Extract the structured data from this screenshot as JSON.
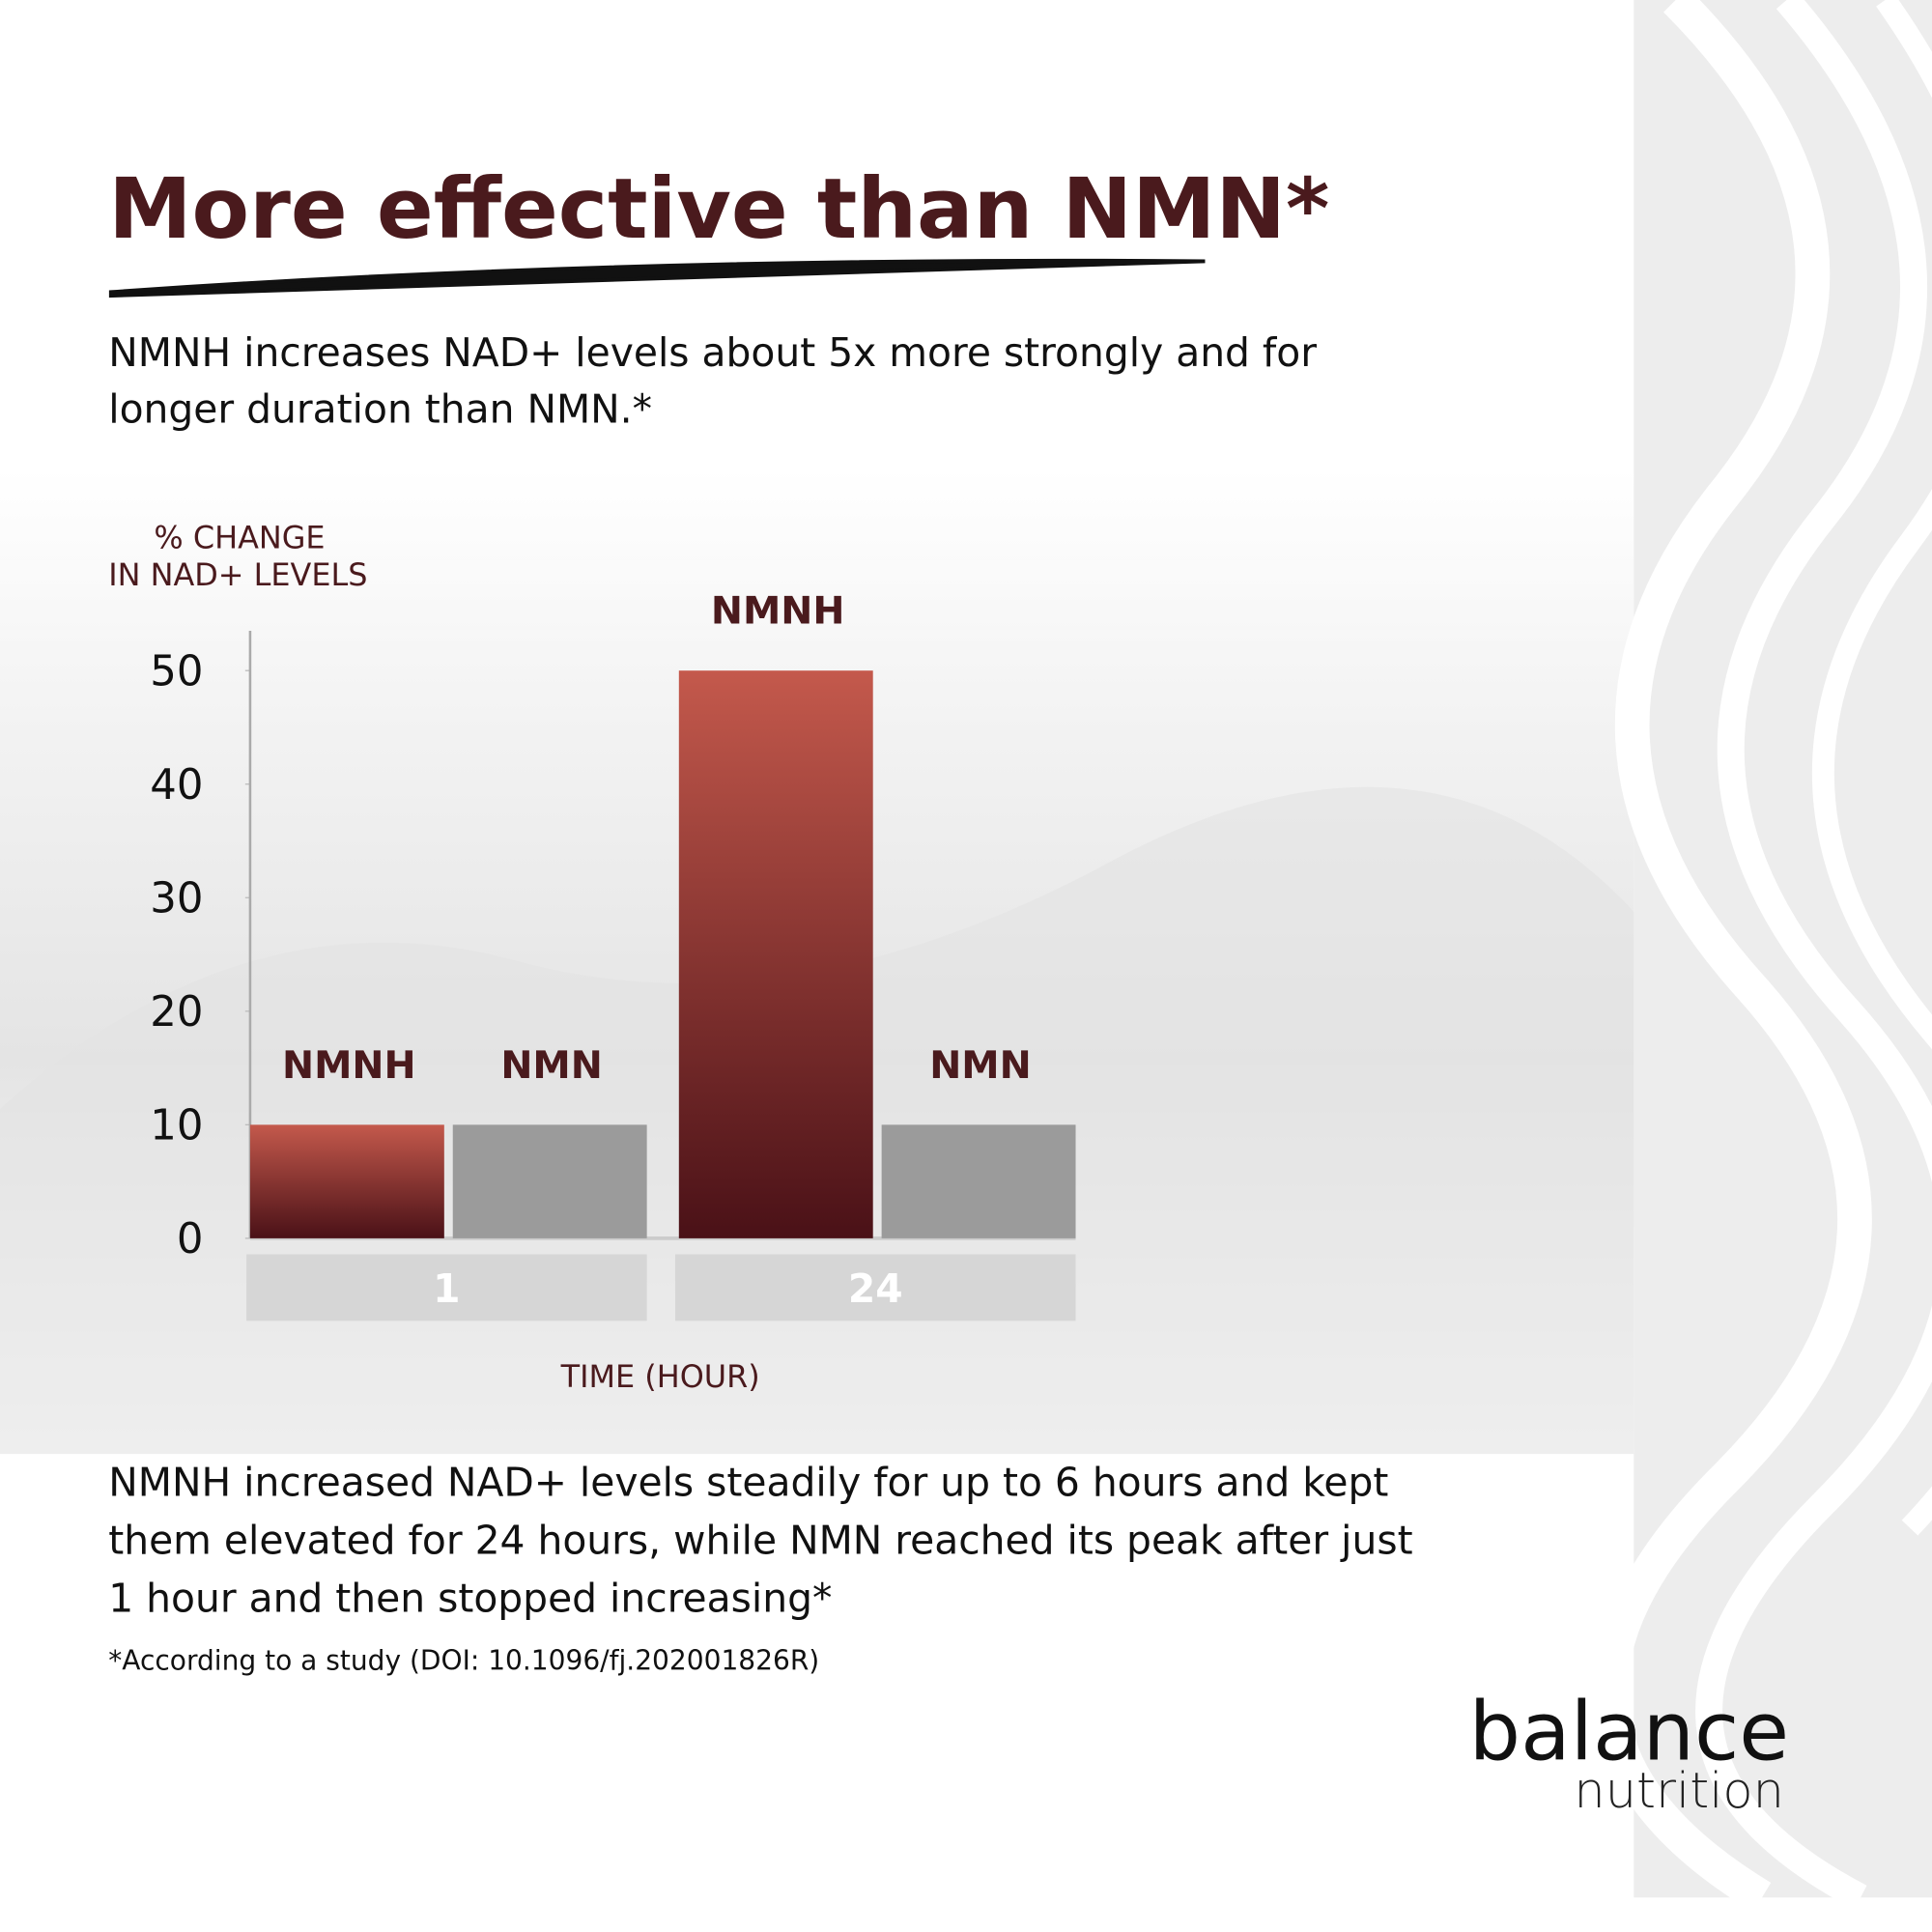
{
  "chart_data": {
    "type": "bar",
    "title": "More effective than NMN*",
    "subtitle": [
      "NMNH increases NAD+ levels about 5x more strongly and for",
      "longer duration than NMN.*"
    ],
    "y_label": [
      "% CHANGE",
      "IN NAD+ LEVELS"
    ],
    "x_label": "TIME (HOUR)",
    "categories": [
      "1",
      "24"
    ],
    "series": [
      {
        "name": "NMNH",
        "color": "#c4594c",
        "values": [
          10,
          50
        ]
      },
      {
        "name": "NMN",
        "color": "#9b9b9b",
        "values": [
          10,
          10
        ]
      }
    ],
    "ylim": [
      0,
      53.5
    ],
    "yticks": [
      0,
      10,
      20,
      30,
      40,
      50
    ]
  },
  "description": [
    "NMNH increased NAD+ levels steadily for up to 6 hours and kept",
    "them elevated for 24 hours, while NMN reached its peak after just",
    "1 hour and then stopped increasing*"
  ],
  "footnote": "*According to a study (DOI: 10.1096/fj.202001826R)",
  "brand": {
    "name": "balance",
    "tagline": "nutrition"
  }
}
